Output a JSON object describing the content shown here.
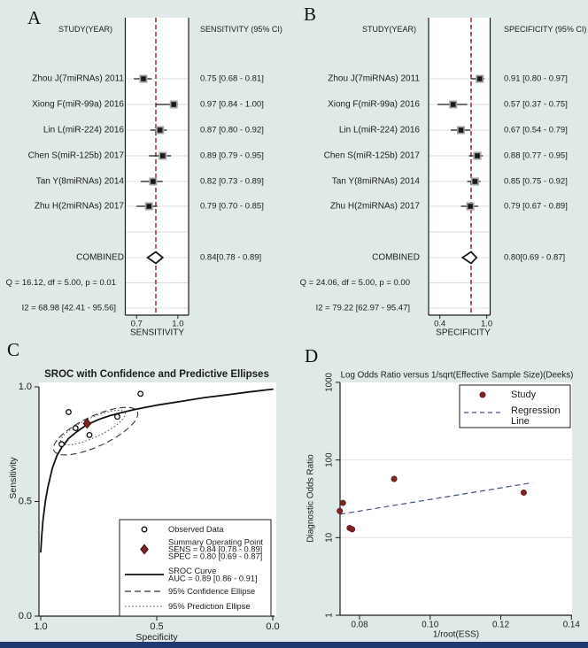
{
  "figure": {
    "background": "#dfe9e8",
    "bottom_bar_color": "#1e3a70"
  },
  "colors": {
    "plot_bg": "#ffffff",
    "axis": "#1c1c1c",
    "text": "#1c1c1c",
    "gridline": "#dbdbdb",
    "gridline_light": "#e2e2e2",
    "ref_line_red": "#9f3a38",
    "marker_black": "#1a1a1a",
    "marker_gray": "#a3a3a3",
    "summary_maroon": "#7e2524",
    "regression_blue": "#41507a",
    "title_navy": "#26395c"
  },
  "chart_data": [
    {
      "id": "forest-sensitivity",
      "panel_label": "A",
      "type": "forest",
      "col_left_header": "STUDY(YEAR)",
      "col_right_header": "SENSITIVITY (95% CI)",
      "xlabel": "SENSITIVITY",
      "axis_ticks": [
        "0.7",
        "1.0"
      ],
      "axis_tick_values": [
        0.7,
        1.0
      ],
      "studies": [
        {
          "label": "Zhou J(7miRNAs) 2011",
          "est": 0.75,
          "lo": 0.68,
          "hi": 0.81,
          "ci_text": "0.75 [0.68 - 0.81]"
        },
        {
          "label": "Xiong F(miR-99a) 2016",
          "est": 0.97,
          "lo": 0.84,
          "hi": 1.0,
          "ci_text": "0.97 [0.84 - 1.00]"
        },
        {
          "label": "Lin L(miR-224) 2016",
          "est": 0.87,
          "lo": 0.8,
          "hi": 0.92,
          "ci_text": "0.87 [0.80 - 0.92]"
        },
        {
          "label": "Chen S(miR-125b) 2017",
          "est": 0.89,
          "lo": 0.79,
          "hi": 0.95,
          "ci_text": "0.89 [0.79 - 0.95]"
        },
        {
          "label": "Tan Y(8miRNAs) 2014",
          "est": 0.82,
          "lo": 0.73,
          "hi": 0.89,
          "ci_text": "0.82 [0.73 - 0.89]"
        },
        {
          "label": "Zhu H(2miRNAs) 2017",
          "est": 0.79,
          "lo": 0.7,
          "hi": 0.85,
          "ci_text": "0.79 [0.70 - 0.85]"
        }
      ],
      "combined": {
        "label": "COMBINED",
        "est": 0.84,
        "lo": 0.78,
        "hi": 0.89,
        "ci_text": "0.84[0.78 - 0.89]"
      },
      "heterogeneity": [
        "Q = 16.12, df = 5.00, p =  0.01",
        "I2 = 68.98 [42.41 - 95.56]"
      ]
    },
    {
      "id": "forest-specificity",
      "panel_label": "B",
      "type": "forest",
      "col_left_header": "STUDY(YEAR)",
      "col_right_header": "SPECIFICITY (95% CI)",
      "xlabel": "SPECIFICITY",
      "axis_ticks": [
        "0.4",
        "1.0"
      ],
      "axis_tick_values": [
        0.4,
        1.0
      ],
      "studies": [
        {
          "label": "Zhou J(7miRNAs) 2011",
          "est": 0.91,
          "lo": 0.8,
          "hi": 0.97,
          "ci_text": "0.91 [0.80 - 0.97]"
        },
        {
          "label": "Xiong F(miR-99a) 2016",
          "est": 0.57,
          "lo": 0.37,
          "hi": 0.75,
          "ci_text": "0.57 [0.37 - 0.75]"
        },
        {
          "label": "Lin L(miR-224) 2016",
          "est": 0.67,
          "lo": 0.54,
          "hi": 0.79,
          "ci_text": "0.67 [0.54 - 0.79]"
        },
        {
          "label": "Chen S(miR-125b) 2017",
          "est": 0.88,
          "lo": 0.77,
          "hi": 0.95,
          "ci_text": "0.88 [0.77 - 0.95]"
        },
        {
          "label": "Tan Y(8miRNAs) 2014",
          "est": 0.85,
          "lo": 0.75,
          "hi": 0.92,
          "ci_text": "0.85 [0.75 - 0.92]"
        },
        {
          "label": "Zhu H(2miRNAs) 2017",
          "est": 0.79,
          "lo": 0.67,
          "hi": 0.89,
          "ci_text": "0.79 [0.67 - 0.89]"
        }
      ],
      "combined": {
        "label": "COMBINED",
        "est": 0.8,
        "lo": 0.69,
        "hi": 0.87,
        "ci_text": "0.80[0.69 - 0.87]"
      },
      "heterogeneity": [
        "Q = 24.06, df = 5.00, p =  0.00",
        "I2 = 79.22 [62.97 - 95.47]"
      ]
    },
    {
      "id": "sroc",
      "panel_label": "C",
      "type": "sroc",
      "title": "SROC with Confidence and Predictive Ellipses",
      "xlabel": "Specificity",
      "ylabel": "Sensitivity",
      "x_ticks": [
        "1.0",
        "0.5",
        "0.0"
      ],
      "x_tick_values": [
        1.0,
        0.5,
        0.0
      ],
      "y_ticks": [
        "0.0",
        "0.5",
        "1.0"
      ],
      "y_tick_values": [
        0.0,
        0.5,
        1.0
      ],
      "observed_points": [
        {
          "spec": 0.91,
          "sens": 0.75
        },
        {
          "spec": 0.57,
          "sens": 0.97
        },
        {
          "spec": 0.67,
          "sens": 0.87
        },
        {
          "spec": 0.88,
          "sens": 0.89
        },
        {
          "spec": 0.85,
          "sens": 0.82
        },
        {
          "spec": 0.79,
          "sens": 0.79
        }
      ],
      "summary_point": {
        "spec": 0.8,
        "sens": 0.84
      },
      "auc_text": "AUC = 0.89 [0.86 - 0.91]",
      "sroc_curve": [
        [
          1.0,
          0.28
        ],
        [
          0.995,
          0.36
        ],
        [
          0.99,
          0.42
        ],
        [
          0.98,
          0.5
        ],
        [
          0.97,
          0.56
        ],
        [
          0.95,
          0.645
        ],
        [
          0.93,
          0.7
        ],
        [
          0.91,
          0.735
        ],
        [
          0.88,
          0.775
        ],
        [
          0.85,
          0.8
        ],
        [
          0.82,
          0.822
        ],
        [
          0.8,
          0.835
        ],
        [
          0.75,
          0.858
        ],
        [
          0.7,
          0.875
        ],
        [
          0.65,
          0.888
        ],
        [
          0.6,
          0.9
        ],
        [
          0.55,
          0.91
        ],
        [
          0.5,
          0.92
        ],
        [
          0.4,
          0.936
        ],
        [
          0.3,
          0.952
        ],
        [
          0.2,
          0.965
        ],
        [
          0.1,
          0.978
        ],
        [
          0.0,
          0.99
        ]
      ],
      "legend": {
        "observed": "Observed Data",
        "summary_lines": [
          "Summary Operating Point",
          "SENS = 0.84 [0.78 - 0.89]",
          "SPEC = 0.80 [0.69 - 0.87]"
        ],
        "sroc_lines": [
          "SROC Curve",
          "AUC = 0.89 [0.86 - 0.91]"
        ],
        "confidence": "95% Confidence Ellipse",
        "prediction": "95% Prediction Ellipse"
      }
    },
    {
      "id": "deeks-funnel",
      "panel_label": "D",
      "type": "deeks",
      "title": "Log Odds Ratio versus 1/sqrt(Effective Sample Size)(Deeks)",
      "xlabel": "1/root(ESS)",
      "ylabel": "Diagnostic Odds Ratio",
      "x_ticks": [
        "0.08",
        "0.10",
        "0.12",
        "0.14"
      ],
      "x_tick_values": [
        0.08,
        0.1,
        0.12,
        0.14
      ],
      "y_ticks": [
        "1",
        "10",
        "100",
        "1000"
      ],
      "y_tick_values": [
        1,
        10,
        100,
        1000
      ],
      "points": [
        {
          "x": 0.0744,
          "y": 22
        },
        {
          "x": 0.0753,
          "y": 28
        },
        {
          "x": 0.0772,
          "y": 13.3
        },
        {
          "x": 0.0779,
          "y": 12.8
        },
        {
          "x": 0.0898,
          "y": 57
        },
        {
          "x": 0.1265,
          "y": 38
        }
      ],
      "regression_line": {
        "x1": 0.0745,
        "y1": 20,
        "x2": 0.129,
        "y2": 51
      },
      "legend": {
        "study": "Study",
        "regression_lines": [
          "Regression",
          "Line"
        ]
      }
    }
  ]
}
